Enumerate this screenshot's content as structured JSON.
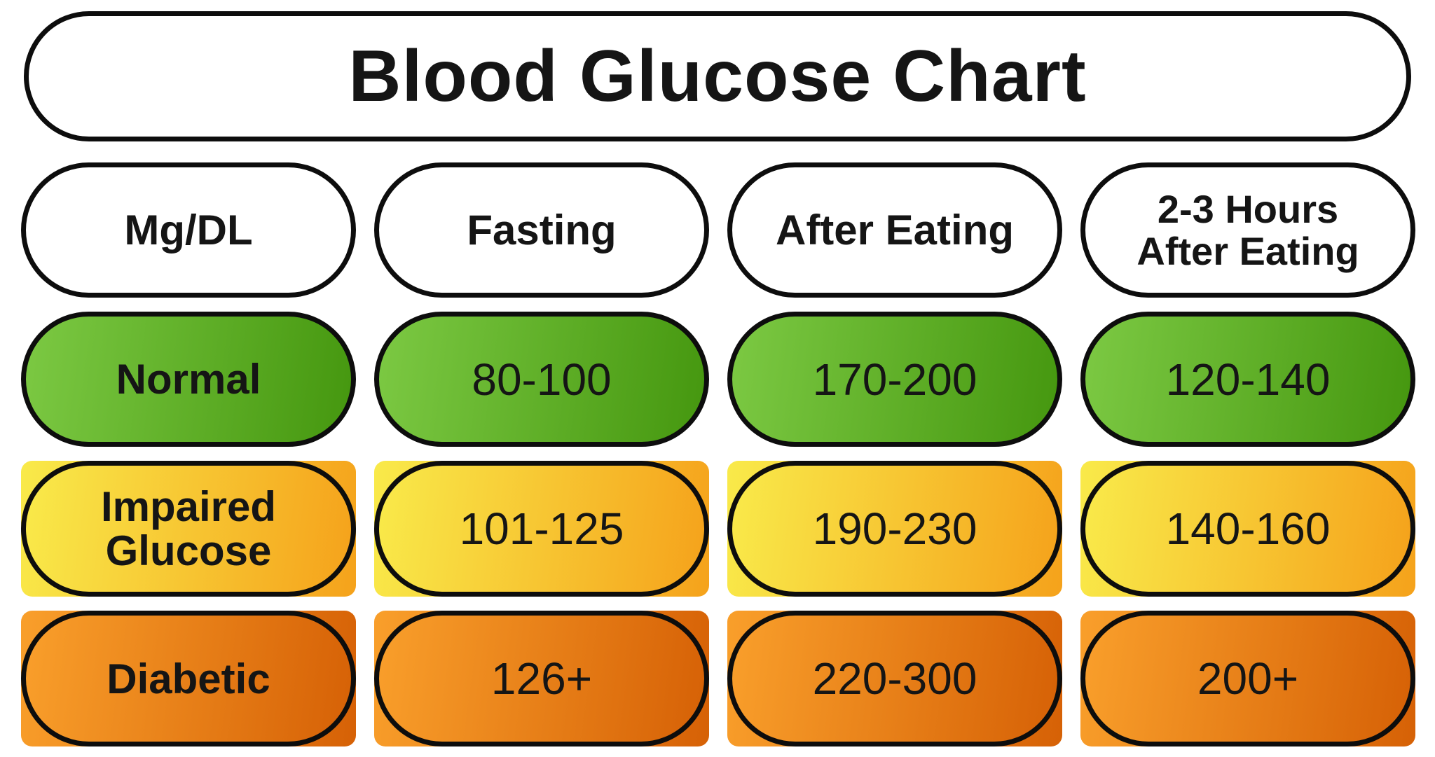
{
  "title": "Blood Glucose Chart",
  "header": {
    "col0": "Mg/DL",
    "col1": "Fasting",
    "col2": "After Eating",
    "col3_line1": "2-3 Hours",
    "col3_line2": "After Eating"
  },
  "rows": [
    {
      "label": "Normal",
      "values": [
        "80-100",
        "170-200",
        "120-140"
      ]
    },
    {
      "label": "Impaired Glucose",
      "values": [
        "101-125",
        "190-230",
        "140-160"
      ]
    },
    {
      "label": "Diabetic",
      "values": [
        "126+",
        "220-300",
        "200+"
      ]
    }
  ],
  "colors": {
    "background": "#ffffff",
    "outline": "#0d0d0d",
    "text": "#151515",
    "normal-light": "#7cc943",
    "normal-dark": "#45970f",
    "impaired-light": "#f9ea4a",
    "impaired-dark": "#f5a21b",
    "diabetic-light": "#f99f2b",
    "diabetic-dark": "#d66106"
  },
  "chart_data": {
    "type": "table",
    "title": "Blood Glucose Chart",
    "unit": "Mg/DL",
    "columns": [
      "Mg/DL",
      "Fasting",
      "After Eating",
      "2-3 Hours After Eating"
    ],
    "rows": [
      {
        "category": "Normal",
        "fasting": "80-100",
        "after_eating": "170-200",
        "2_3_hours_after_eating": "120-140"
      },
      {
        "category": "Impaired Glucose",
        "fasting": "101-125",
        "after_eating": "190-230",
        "2_3_hours_after_eating": "140-160"
      },
      {
        "category": "Diabetic",
        "fasting": "126+",
        "after_eating": "220-300",
        "2_3_hours_after_eating": "200+"
      }
    ],
    "row_colors": {
      "Normal": "green",
      "Impaired Glucose": "yellow-orange",
      "Diabetic": "orange"
    },
    "legend_position": "none",
    "grid": false
  }
}
